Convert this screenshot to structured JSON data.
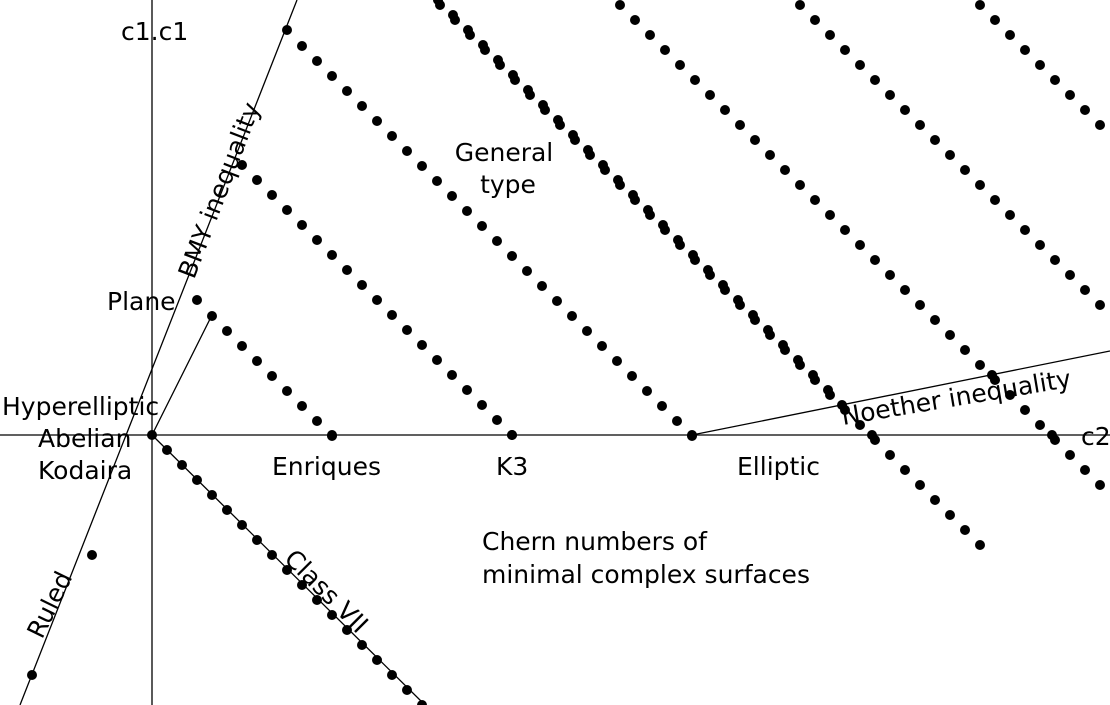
{
  "diagram": {
    "axes": {
      "x_label": "c2",
      "y_label": "c1.c1"
    },
    "regions": {
      "general_type": [
        "General",
        "type"
      ],
      "plane": "Plane",
      "hyperelliptic": "Hyperelliptic",
      "abelian": "Abelian",
      "kodaira": "Kodaira",
      "enriques": "Enriques",
      "k3": "K3",
      "elliptic": "Elliptic",
      "ruled": "Ruled",
      "class_vii": "Class VII"
    },
    "inequalities": {
      "bmy": "BMY inequality",
      "noether": "Noether inequality"
    },
    "caption": [
      "Chern numbers of",
      "minimal complex surfaces"
    ],
    "colors": {
      "line": "#000000",
      "dot": "#000000",
      "background": "#ffffff"
    }
  }
}
